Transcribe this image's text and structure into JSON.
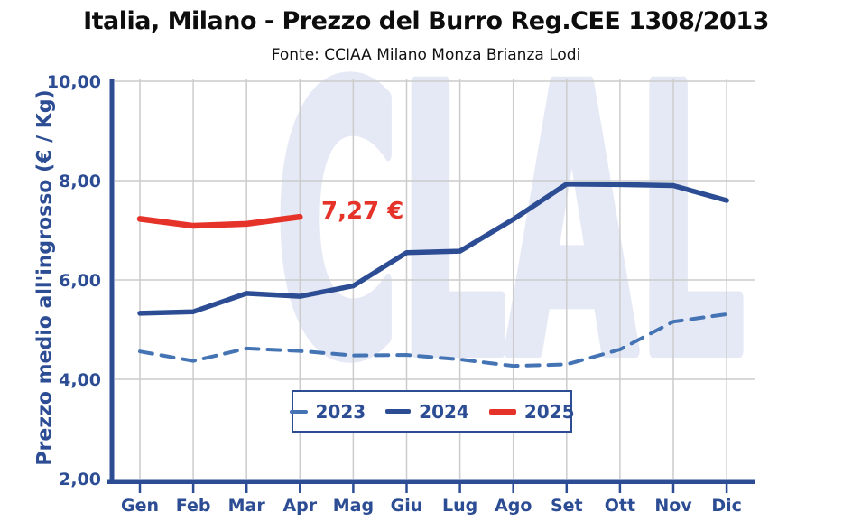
{
  "title": "Italia, Milano - Prezzo del Burro Reg.CEE 1308/2013",
  "subtitle": "Fonte: CCIAA Milano Monza Brianza Lodi",
  "watermark": "CLAL",
  "y_axis_title": "Prezzo medio all'ingrosso (€ / Kg)",
  "annotation": {
    "text": "7,27 €",
    "color": "#E6332A",
    "refers_to": "2025 Apr"
  },
  "chart_data": {
    "type": "line",
    "categories": [
      "Gen",
      "Feb",
      "Mar",
      "Apr",
      "Mag",
      "Giu",
      "Lug",
      "Ago",
      "Set",
      "Ott",
      "Nov",
      "Dic"
    ],
    "xlabel": "",
    "ylabel": "Prezzo medio all'ingrosso (€ / Kg)",
    "ylim": [
      2,
      10
    ],
    "y_tick_labels": [
      "2,00",
      "4,00",
      "6,00",
      "8,00",
      "10,00"
    ],
    "y_tick_values": [
      2,
      4,
      6,
      8,
      10
    ],
    "grid": true,
    "legend_position": "bottom-center",
    "axis_color": "#2C4D94",
    "grid_color": "#CCCCCC",
    "watermark_color": "#E5E8F5",
    "series": [
      {
        "name": "2023",
        "style": "dashed",
        "color": "#4574B4",
        "values": [
          4.56,
          4.37,
          4.62,
          4.57,
          4.48,
          4.49,
          4.4,
          4.27,
          4.3,
          4.6,
          5.16,
          5.31
        ]
      },
      {
        "name": "2024",
        "style": "solid",
        "color": "#2C4D94",
        "values": [
          5.33,
          5.36,
          5.73,
          5.67,
          5.88,
          6.55,
          6.58,
          7.22,
          7.93,
          7.92,
          7.9,
          7.6
        ]
      },
      {
        "name": "2025",
        "style": "solid",
        "color": "#E6332A",
        "values": [
          7.23,
          7.09,
          7.13,
          7.27
        ]
      }
    ]
  }
}
